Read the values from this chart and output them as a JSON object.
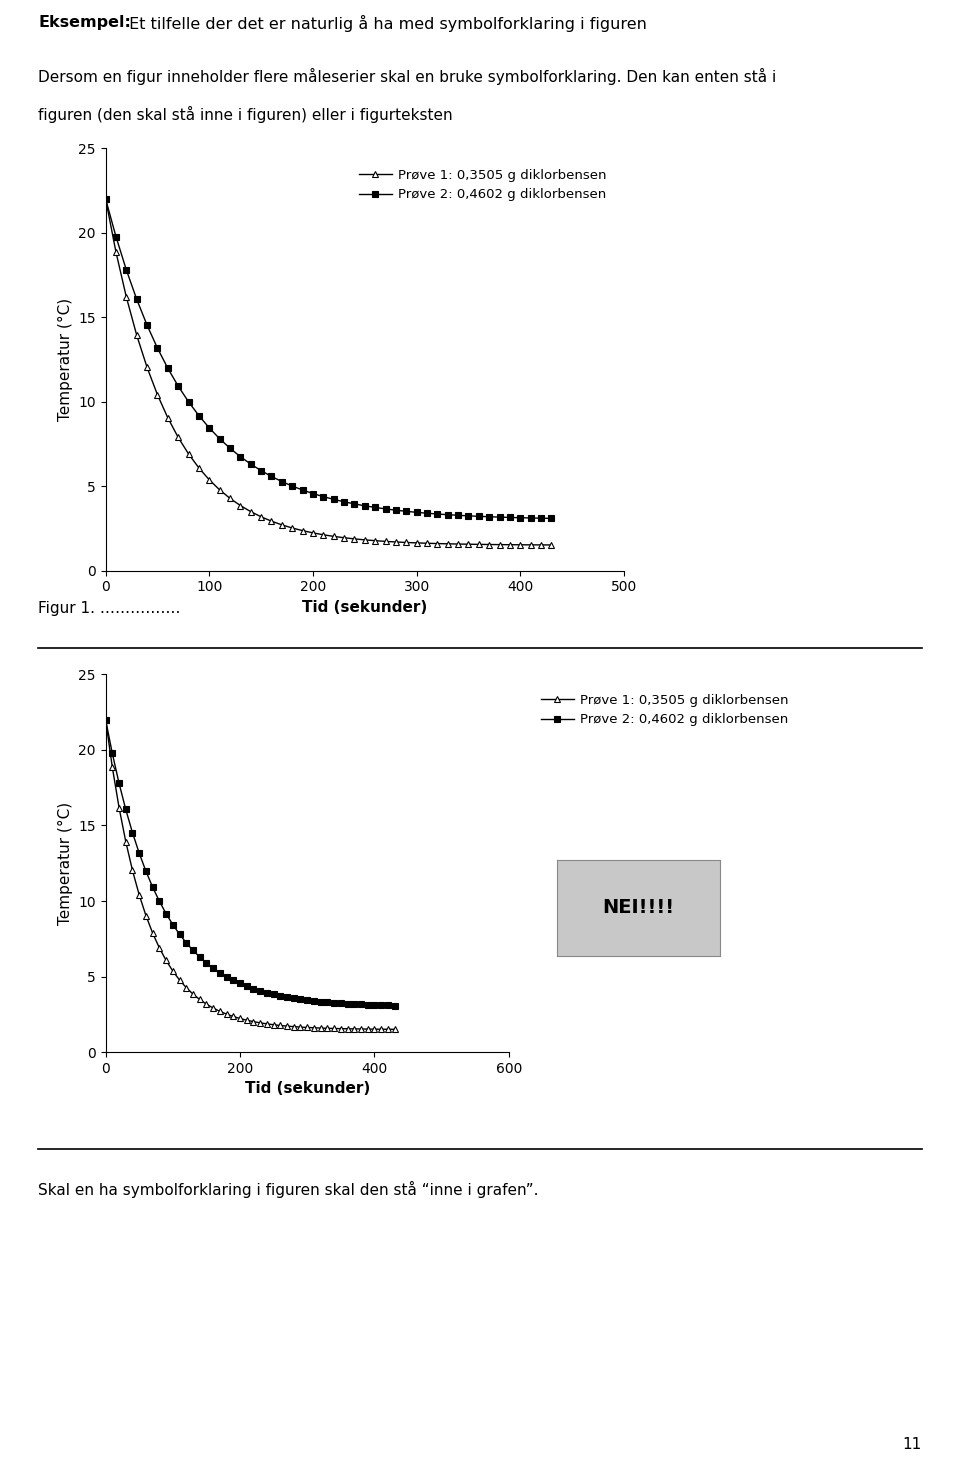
{
  "title_bold": "Eksempel:",
  "title_rest": " Et tilfelle der det er naturlig å ha med symbolforklaring i figuren",
  "para1_line1": "Dersom en figur inneholder flere måleserier skal en bruke symbolforklaring. Den kan enten stå i",
  "para1_line2": "figuren (den skal stå inne i figuren) eller i figurteksten",
  "ylabel": "Temperatur (°C)",
  "xlabel": "Tid (sekunder)",
  "legend1": "Prøve 1: 0,3505 g diklorbensen",
  "legend2": "Prøve 2: 0,4602 g diklorbensen",
  "figur_text": "Figur 1. …………….",
  "bottom_text": "Skal en ha symbolforklaring i figuren skal den stå “inne i grafen”.",
  "page_number": "11",
  "nei_text": "NEI!!!!",
  "chart1_xlim": [
    0,
    500
  ],
  "chart1_ylim": [
    0,
    25
  ],
  "chart1_xticks": [
    0,
    100,
    200,
    300,
    400,
    500
  ],
  "chart1_yticks": [
    0,
    5,
    10,
    15,
    20,
    25
  ],
  "chart2_xlim": [
    0,
    600
  ],
  "chart2_ylim": [
    0,
    25
  ],
  "chart2_xticks": [
    0,
    200,
    400,
    600
  ],
  "chart2_yticks": [
    0,
    5,
    10,
    15,
    20,
    25
  ],
  "bg_color": "#ffffff",
  "line_color": "#000000",
  "nei_bg": "#c8c8c8"
}
